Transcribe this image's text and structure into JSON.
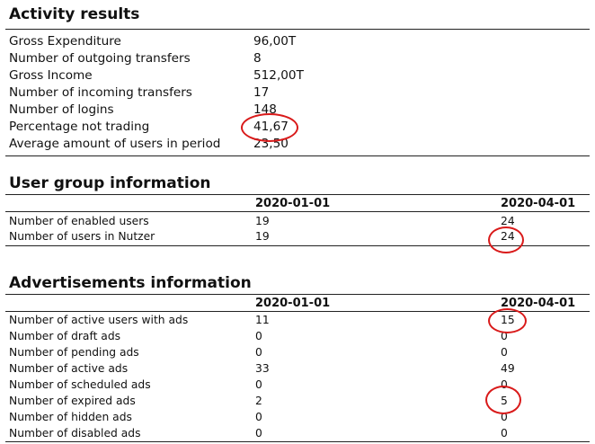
{
  "activity": {
    "title": "Activity results",
    "rows": [
      {
        "label": "Gross Expenditure",
        "value": "96,00T"
      },
      {
        "label": "Number of outgoing transfers",
        "value": "8"
      },
      {
        "label": "Gross Income",
        "value": "512,00T"
      },
      {
        "label": "Number of incoming transfers",
        "value": "17"
      },
      {
        "label": "Number of logins",
        "value": "148"
      },
      {
        "label": "Percentage not trading",
        "value": "41,67"
      },
      {
        "label": "Average amount of users in period",
        "value": "23,50"
      }
    ]
  },
  "user_group": {
    "title": "User group information",
    "columns": [
      "2020-01-01",
      "2020-04-01"
    ],
    "rows": [
      {
        "label": "Number of enabled users",
        "v1": "19",
        "v2": "24"
      },
      {
        "label": "Number of users in Nutzer",
        "v1": "19",
        "v2": "24"
      }
    ]
  },
  "ads": {
    "title": "Advertisements information",
    "columns": [
      "2020-01-01",
      "2020-04-01"
    ],
    "rows": [
      {
        "label": "Number of active users with ads",
        "v1": "11",
        "v2": "15"
      },
      {
        "label": "Number of draft ads",
        "v1": "0",
        "v2": "0"
      },
      {
        "label": "Number of pending ads",
        "v1": "0",
        "v2": "0"
      },
      {
        "label": "Number of active ads",
        "v1": "33",
        "v2": "49"
      },
      {
        "label": "Number of scheduled ads",
        "v1": "0",
        "v2": "0"
      },
      {
        "label": "Number of expired ads",
        "v1": "2",
        "v2": "5"
      },
      {
        "label": "Number of hidden ads",
        "v1": "0",
        "v2": "0"
      },
      {
        "label": "Number of disabled ads",
        "v1": "0",
        "v2": "0"
      }
    ]
  },
  "annotation_color": "#d91a1a"
}
